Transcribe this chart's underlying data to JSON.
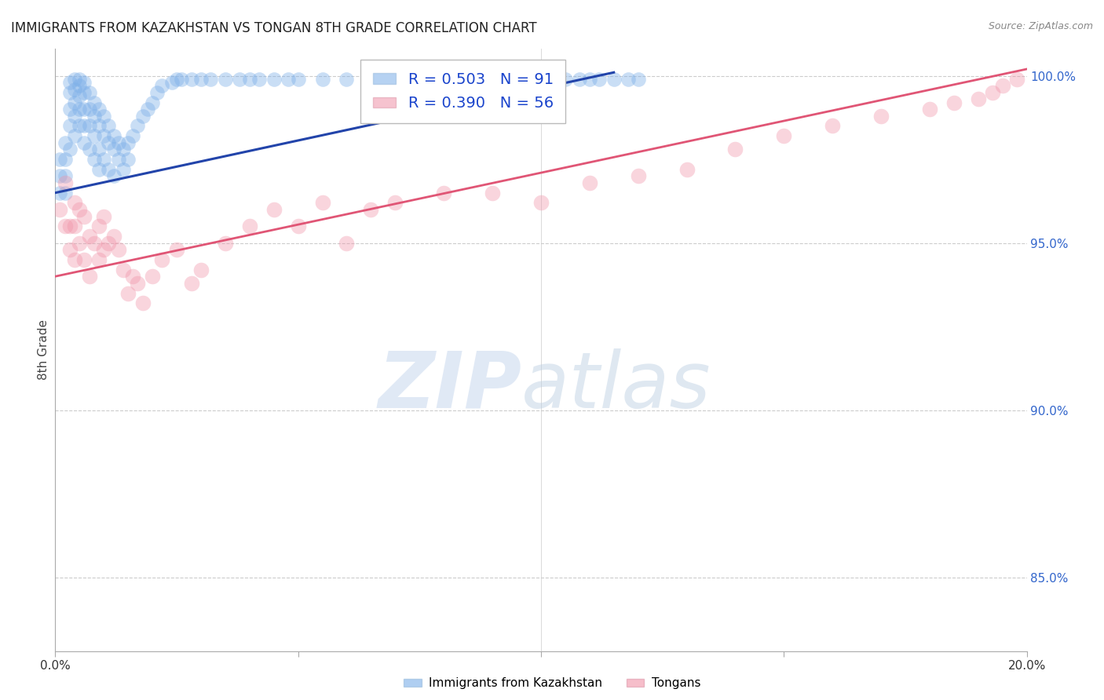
{
  "title": "IMMIGRANTS FROM KAZAKHSTAN VS TONGAN 8TH GRADE CORRELATION CHART",
  "source": "Source: ZipAtlas.com",
  "ylabel": "8th Grade",
  "x_min": 0.0,
  "x_max": 0.2,
  "y_min": 0.828,
  "y_max": 1.008,
  "y_ticks": [
    0.85,
    0.9,
    0.95,
    1.0
  ],
  "y_tick_labels": [
    "85.0%",
    "90.0%",
    "95.0%",
    "100.0%"
  ],
  "x_ticks": [
    0.0,
    0.05,
    0.1,
    0.15,
    0.2
  ],
  "x_tick_labels": [
    "0.0%",
    "",
    "",
    "",
    "20.0%"
  ],
  "blue_R": 0.503,
  "blue_N": 91,
  "pink_R": 0.39,
  "pink_N": 56,
  "blue_color": "#7aaee8",
  "pink_color": "#f093a8",
  "blue_line_color": "#2244aa",
  "pink_line_color": "#e05575",
  "legend_label_blue": "Immigrants from Kazakhstan",
  "legend_label_pink": "Tongans",
  "watermark_zip": "ZIP",
  "watermark_atlas": "atlas",
  "blue_scatter_x": [
    0.001,
    0.001,
    0.001,
    0.002,
    0.002,
    0.002,
    0.002,
    0.003,
    0.003,
    0.003,
    0.003,
    0.003,
    0.004,
    0.004,
    0.004,
    0.004,
    0.004,
    0.005,
    0.005,
    0.005,
    0.005,
    0.005,
    0.006,
    0.006,
    0.006,
    0.006,
    0.006,
    0.007,
    0.007,
    0.007,
    0.007,
    0.008,
    0.008,
    0.008,
    0.008,
    0.009,
    0.009,
    0.009,
    0.009,
    0.01,
    0.01,
    0.01,
    0.011,
    0.011,
    0.011,
    0.012,
    0.012,
    0.012,
    0.013,
    0.013,
    0.014,
    0.014,
    0.015,
    0.015,
    0.016,
    0.017,
    0.018,
    0.019,
    0.02,
    0.021,
    0.022,
    0.024,
    0.025,
    0.026,
    0.028,
    0.03,
    0.032,
    0.035,
    0.038,
    0.04,
    0.042,
    0.045,
    0.048,
    0.05,
    0.055,
    0.06,
    0.065,
    0.07,
    0.075,
    0.08,
    0.085,
    0.09,
    0.095,
    0.1,
    0.105,
    0.108,
    0.11,
    0.112,
    0.115,
    0.118,
    0.12
  ],
  "blue_scatter_y": [
    0.975,
    0.97,
    0.965,
    0.98,
    0.975,
    0.97,
    0.965,
    0.998,
    0.995,
    0.99,
    0.985,
    0.978,
    0.999,
    0.996,
    0.992,
    0.988,
    0.982,
    0.999,
    0.997,
    0.994,
    0.99,
    0.985,
    0.998,
    0.995,
    0.99,
    0.985,
    0.98,
    0.995,
    0.99,
    0.985,
    0.978,
    0.992,
    0.988,
    0.982,
    0.975,
    0.99,
    0.985,
    0.978,
    0.972,
    0.988,
    0.982,
    0.975,
    0.985,
    0.98,
    0.972,
    0.982,
    0.978,
    0.97,
    0.98,
    0.975,
    0.978,
    0.972,
    0.98,
    0.975,
    0.982,
    0.985,
    0.988,
    0.99,
    0.992,
    0.995,
    0.997,
    0.998,
    0.999,
    0.999,
    0.999,
    0.999,
    0.999,
    0.999,
    0.999,
    0.999,
    0.999,
    0.999,
    0.999,
    0.999,
    0.999,
    0.999,
    0.999,
    0.999,
    0.999,
    0.999,
    0.999,
    0.999,
    0.999,
    0.999,
    0.999,
    0.999,
    0.999,
    0.999,
    0.999,
    0.999,
    0.999
  ],
  "pink_scatter_x": [
    0.001,
    0.002,
    0.002,
    0.003,
    0.003,
    0.004,
    0.004,
    0.004,
    0.005,
    0.005,
    0.006,
    0.006,
    0.007,
    0.007,
    0.008,
    0.009,
    0.009,
    0.01,
    0.01,
    0.011,
    0.012,
    0.013,
    0.014,
    0.015,
    0.016,
    0.017,
    0.018,
    0.02,
    0.022,
    0.025,
    0.028,
    0.03,
    0.035,
    0.04,
    0.045,
    0.05,
    0.055,
    0.06,
    0.065,
    0.07,
    0.08,
    0.09,
    0.1,
    0.11,
    0.12,
    0.13,
    0.14,
    0.15,
    0.16,
    0.17,
    0.18,
    0.185,
    0.19,
    0.193,
    0.195,
    0.198
  ],
  "pink_scatter_y": [
    0.96,
    0.968,
    0.955,
    0.955,
    0.948,
    0.962,
    0.955,
    0.945,
    0.96,
    0.95,
    0.958,
    0.945,
    0.952,
    0.94,
    0.95,
    0.955,
    0.945,
    0.958,
    0.948,
    0.95,
    0.952,
    0.948,
    0.942,
    0.935,
    0.94,
    0.938,
    0.932,
    0.94,
    0.945,
    0.948,
    0.938,
    0.942,
    0.95,
    0.955,
    0.96,
    0.955,
    0.962,
    0.95,
    0.96,
    0.962,
    0.965,
    0.965,
    0.962,
    0.968,
    0.97,
    0.972,
    0.978,
    0.982,
    0.985,
    0.988,
    0.99,
    0.992,
    0.993,
    0.995,
    0.997,
    0.999
  ],
  "blue_line_x": [
    0.0,
    0.115
  ],
  "blue_line_y": [
    0.965,
    1.001
  ],
  "pink_line_x": [
    0.0,
    0.2
  ],
  "pink_line_y": [
    0.94,
    1.002
  ]
}
